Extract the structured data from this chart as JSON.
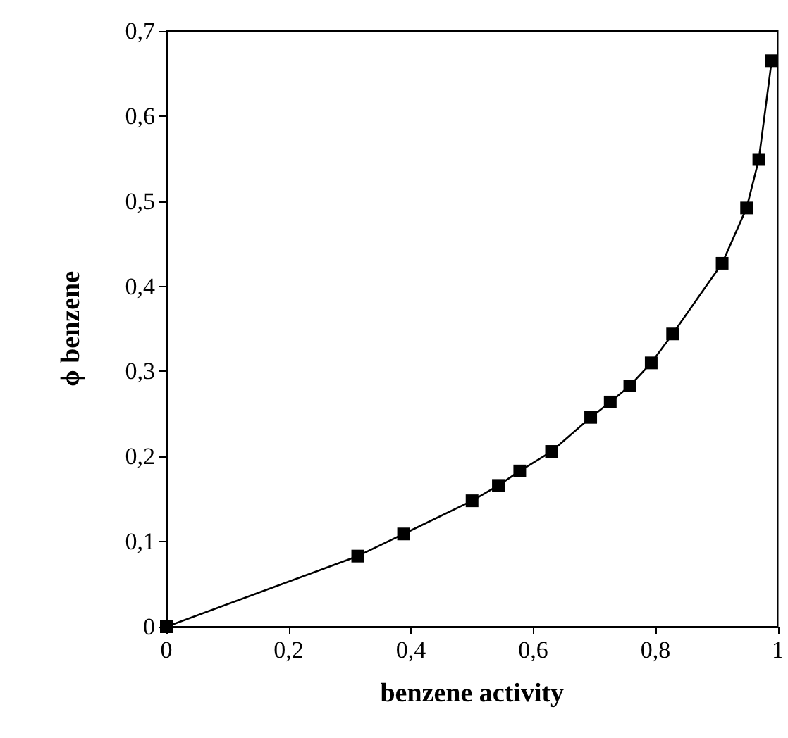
{
  "chart_data": {
    "type": "line",
    "xlabel": "benzene activity",
    "ylabel": "ϕ benzene",
    "x": [
      0,
      0.313,
      0.388,
      0.5,
      0.543,
      0.578,
      0.63,
      0.694,
      0.726,
      0.758,
      0.793,
      0.828,
      0.909,
      0.949,
      0.969,
      0.99
    ],
    "series": [
      {
        "color": "#000000",
        "values": [
          0,
          0.083,
          0.109,
          0.148,
          0.166,
          0.183,
          0.206,
          0.246,
          0.264,
          0.283,
          0.31,
          0.344,
          0.427,
          0.492,
          0.549,
          0.665
        ]
      }
    ],
    "xlim": [
      0,
      1
    ],
    "xticks": [
      0,
      {
        "value": 0.2,
        "label": "0,2"
      },
      {
        "value": 0.4,
        "label": "0,4"
      },
      {
        "value": 0.6,
        "label": "0,6"
      },
      {
        "value": 0.8,
        "label": "0,8"
      },
      1
    ],
    "ylim": [
      0,
      0.7
    ],
    "yticks": [
      0,
      {
        "value": 0.1,
        "label": "0,1"
      },
      {
        "value": 0.2,
        "label": "0,2"
      },
      {
        "value": 0.3,
        "label": "0,3"
      },
      {
        "value": 0.4,
        "label": "0,4"
      },
      {
        "value": 0.5,
        "label": "0,5"
      },
      {
        "value": 0.6,
        "label": "0,6"
      },
      {
        "value": 0.7,
        "label": "0,7"
      }
    ],
    "marker": "square",
    "line_style": "solid"
  }
}
